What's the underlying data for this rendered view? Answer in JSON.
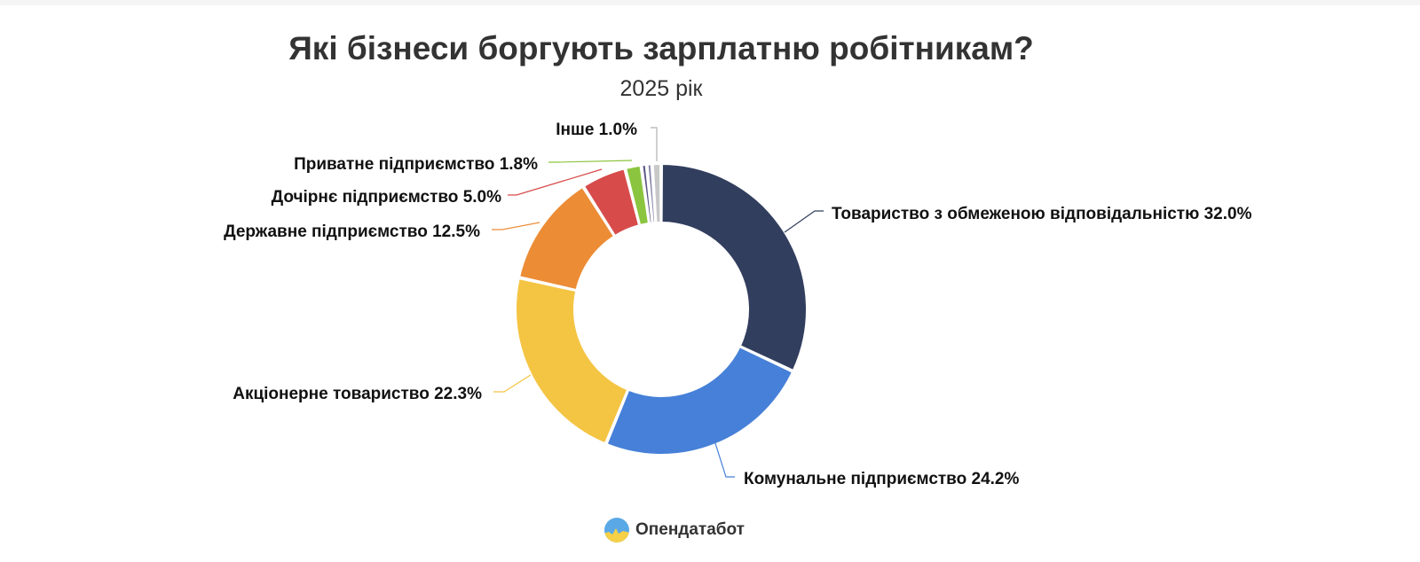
{
  "title": "Які бізнеси боргують зарплатню робітникам?",
  "subtitle": "2025 рік",
  "brand": {
    "name": "Опендатабот"
  },
  "chart_data": {
    "type": "pie",
    "donut": true,
    "start_angle_deg": 0,
    "direction": "clockwise",
    "categories": [
      "Товариство з обмеженою відповідальністю",
      "Комунальне підприємство",
      "Акціонерне товариство",
      "Державне підприємство",
      "Дочірнє підприємство",
      "Приватне підприємство",
      "",
      "",
      "Інше"
    ],
    "values": [
      32.0,
      24.2,
      22.3,
      12.5,
      5.0,
      1.8,
      0.6,
      0.6,
      1.0
    ],
    "labels": [
      "Товариство з обмеженою відповідальністю 32.0%",
      "Комунальне підприємство 24.2%",
      "Акціонерне товариство 22.3%",
      "Державне підприємство 12.5%",
      "Дочірнє підприємство 5.0%",
      "Приватне підприємство 1.8%",
      "",
      "",
      "Інше 1.0%"
    ],
    "colors": [
      "#323e5e",
      "#4680d8",
      "#f4c443",
      "#ec8c35",
      "#d74b4b",
      "#8bc53f",
      "#5a5585",
      "#8a8aaa",
      "#c8c8c8"
    ],
    "legend": "none"
  }
}
